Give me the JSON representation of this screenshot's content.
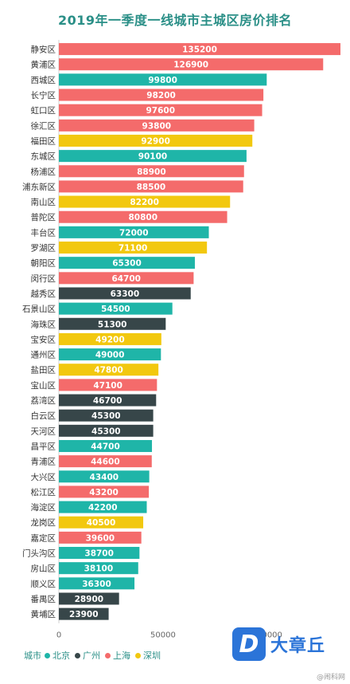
{
  "chart_data": {
    "type": "bar",
    "orientation": "horizontal",
    "title": "2019年一季度一线城市主城区房价排名",
    "categories": [
      "静安区",
      "黄浦区",
      "西城区",
      "长宁区",
      "虹口区",
      "徐汇区",
      "福田区",
      "东城区",
      "杨浦区",
      "浦东新区",
      "南山区",
      "普陀区",
      "丰台区",
      "罗湖区",
      "朝阳区",
      "闵行区",
      "越秀区",
      "石景山区",
      "海珠区",
      "宝安区",
      "通州区",
      "盐田区",
      "宝山区",
      "荔湾区",
      "白云区",
      "天河区",
      "昌平区",
      "青浦区",
      "大兴区",
      "松江区",
      "海淀区",
      "龙岗区",
      "嘉定区",
      "门头沟区",
      "房山区",
      "顺义区",
      "番禺区",
      "黄埔区"
    ],
    "values": [
      135200,
      126900,
      99800,
      98200,
      97600,
      93800,
      92900,
      90100,
      88900,
      88500,
      82200,
      80800,
      72000,
      71100,
      65300,
      64700,
      63300,
      54500,
      51300,
      49200,
      49000,
      47800,
      47100,
      46700,
      45300,
      45300,
      44700,
      44600,
      43400,
      43200,
      42200,
      40500,
      39600,
      38700,
      38100,
      36300,
      28900,
      23900
    ],
    "cities": [
      "上海",
      "上海",
      "北京",
      "上海",
      "上海",
      "上海",
      "深圳",
      "北京",
      "上海",
      "上海",
      "深圳",
      "上海",
      "北京",
      "深圳",
      "北京",
      "上海",
      "广州",
      "北京",
      "广州",
      "深圳",
      "北京",
      "深圳",
      "上海",
      "广州",
      "广州",
      "广州",
      "北京",
      "上海",
      "北京",
      "上海",
      "北京",
      "深圳",
      "上海",
      "北京",
      "北京",
      "北京",
      "广州",
      "广州"
    ],
    "xlim": [
      0,
      135200
    ],
    "xticks": [
      0,
      50000,
      100000
    ],
    "xtick_labels": [
      "0",
      "50000",
      "100000"
    ],
    "legend_title": "城市",
    "legend": [
      {
        "name": "北京",
        "color": "#1fb5a8"
      },
      {
        "name": "广州",
        "color": "#374649"
      },
      {
        "name": "上海",
        "color": "#f46b6b"
      },
      {
        "name": "深圳",
        "color": "#f2c80f"
      }
    ],
    "legend_position": "bottom-left",
    "grid": false
  },
  "logo": {
    "badge": "D",
    "text": "大章丘"
  },
  "watermark": "@闹科网"
}
